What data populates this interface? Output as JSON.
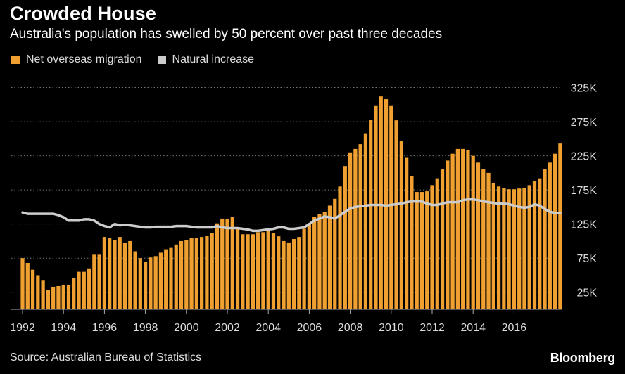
{
  "title": "Crowded House",
  "subtitle": "Australia's population has swelled by 50 percent over past three decades",
  "source": "Source: Australian Bureau of Statistics",
  "brand": "Bloomberg",
  "colors": {
    "bar": "#f0a030",
    "line": "#cccccc",
    "grid": "#777777",
    "text": "#dddddd"
  },
  "chart_data": {
    "type": "bar",
    "title": "Crowded House",
    "subtitle": "Australia's population has swelled by 50 percent over past three decades",
    "ylim": [
      0,
      340000
    ],
    "y_ticks": [
      25000,
      75000,
      125000,
      175000,
      225000,
      275000,
      325000
    ],
    "y_tick_labels": [
      "25K",
      "75K",
      "125K",
      "175K",
      "225K",
      "275K",
      "325K"
    ],
    "x_tick_labels": [
      "1992",
      "1994",
      "1996",
      "1998",
      "2000",
      "2002",
      "2004",
      "2006",
      "2008",
      "2010",
      "2012",
      "2014",
      "2016"
    ],
    "x_start": 1992.0,
    "x_step": 0.25,
    "grid": true,
    "legend_position": "top-left",
    "series": [
      {
        "name": "Net overseas migration",
        "kind": "bar",
        "values": [
          75000,
          68000,
          58000,
          50000,
          42000,
          28000,
          33000,
          34000,
          35000,
          36000,
          46000,
          55000,
          55000,
          60000,
          80000,
          80000,
          106000,
          105000,
          102000,
          106000,
          97000,
          100000,
          85000,
          75000,
          70000,
          76000,
          78000,
          83000,
          88000,
          90000,
          95000,
          100000,
          102000,
          104000,
          105000,
          106000,
          108000,
          112000,
          126000,
          133000,
          132000,
          135000,
          120000,
          110000,
          110000,
          110000,
          113000,
          113000,
          115000,
          112000,
          107000,
          100000,
          98000,
          103000,
          106000,
          118000,
          125000,
          135000,
          140000,
          143000,
          152000,
          162000,
          180000,
          210000,
          230000,
          235000,
          242000,
          258000,
          278000,
          298000,
          312000,
          308000,
          298000,
          277000,
          247000,
          222000,
          195000,
          172000,
          172000,
          173000,
          182000,
          192000,
          205000,
          218000,
          228000,
          235000,
          235000,
          233000,
          225000,
          215000,
          205000,
          200000,
          185000,
          180000,
          178000,
          176000,
          176000,
          177000,
          178000,
          182000,
          188000,
          192000,
          205000,
          215000,
          228000,
          243000
        ]
      },
      {
        "name": "Natural increase",
        "kind": "line",
        "values": [
          142000,
          140000,
          140000,
          140000,
          140000,
          140000,
          140000,
          138000,
          135000,
          130000,
          130000,
          130000,
          132000,
          132000,
          130000,
          125000,
          122000,
          120000,
          125000,
          123000,
          124000,
          123000,
          122000,
          121000,
          120000,
          120000,
          121000,
          121000,
          121000,
          121000,
          122000,
          122000,
          122000,
          121000,
          120000,
          120000,
          120000,
          120000,
          122000,
          120000,
          119000,
          119000,
          119000,
          118000,
          117000,
          115000,
          115000,
          116000,
          117000,
          118000,
          120000,
          120000,
          118000,
          118000,
          119000,
          120000,
          125000,
          130000,
          133000,
          136000,
          135000,
          133000,
          138000,
          143000,
          148000,
          150000,
          151000,
          152000,
          153000,
          153000,
          153000,
          152000,
          153000,
          154000,
          155000,
          157000,
          158000,
          158000,
          158000,
          155000,
          153000,
          153000,
          155000,
          157000,
          157000,
          157000,
          160000,
          161000,
          161000,
          160000,
          158000,
          157000,
          156000,
          155000,
          155000,
          154000,
          152000,
          150000,
          149000,
          150000,
          154000,
          152000,
          147000,
          143000,
          141000,
          141000
        ]
      }
    ]
  }
}
